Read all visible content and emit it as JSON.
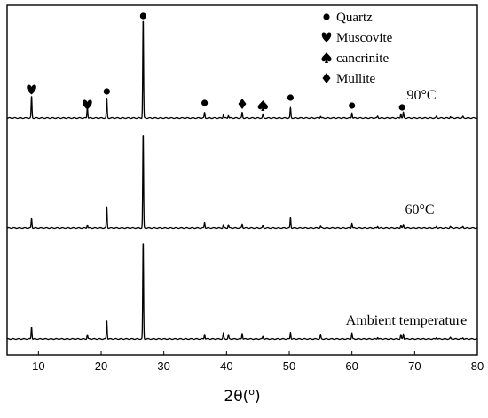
{
  "chart_data": {
    "type": "line",
    "title": "",
    "xlabel": "2θ(°)",
    "xlabel_parts": {
      "prefix": "2θ(",
      "sup": "o",
      "suffix": ")"
    },
    "ylabel": "",
    "xlim": [
      5,
      80
    ],
    "x_ticks": [
      10,
      20,
      30,
      40,
      50,
      60,
      70,
      80
    ],
    "y_ticks_shown": false,
    "grid": false,
    "peaks_2theta": [
      8.9,
      17.8,
      20.9,
      26.7,
      36.5,
      39.5,
      40.3,
      42.5,
      45.8,
      50.2,
      55.0,
      60.0,
      64.1,
      67.8,
      68.2,
      73.5,
      75.7,
      77.7
    ],
    "series": [
      {
        "name": "90°C",
        "baseline": 1.0,
        "peak_heights": [
          2.4,
          1.2,
          2.2,
          11.0,
          0.6,
          0.4,
          0.3,
          0.6,
          0.4,
          1.1,
          0.2,
          0.6,
          0.2,
          0.5,
          0.6,
          0.2,
          0.15,
          0.15
        ]
      },
      {
        "name": "60°C",
        "baseline": 1.0,
        "peak_heights": [
          1.1,
          0.4,
          2.5,
          11.0,
          0.7,
          0.4,
          0.4,
          0.5,
          0.3,
          1.2,
          0.2,
          0.6,
          0.2,
          0.3,
          0.4,
          0.2,
          0.15,
          0.15
        ]
      },
      {
        "name": "Ambient temperature",
        "baseline": 1.0,
        "peak_heights": [
          1.4,
          0.5,
          2.2,
          11.5,
          0.6,
          0.7,
          0.5,
          0.7,
          0.3,
          0.8,
          0.5,
          0.7,
          0.2,
          0.5,
          0.6,
          0.2,
          0.15,
          0.15
        ]
      }
    ],
    "legend": {
      "placement": "top-right",
      "entries": [
        {
          "symbol": "circle",
          "label": "Quartz"
        },
        {
          "symbol": "heart",
          "label": "Muscovite"
        },
        {
          "symbol": "spade",
          "label": "cancrinite"
        },
        {
          "symbol": "diamond",
          "label": "Mullite"
        }
      ]
    },
    "annotations": [
      {
        "symbol": "heart",
        "x": 8.9
      },
      {
        "symbol": "heart",
        "x": 17.8
      },
      {
        "symbol": "circle",
        "x": 20.9
      },
      {
        "symbol": "circle",
        "x": 26.7
      },
      {
        "symbol": "circle",
        "x": 36.5
      },
      {
        "symbol": "diamond",
        "x": 42.5
      },
      {
        "symbol": "spade",
        "x": 45.8
      },
      {
        "symbol": "circle",
        "x": 50.2
      },
      {
        "symbol": "circle",
        "x": 60.0
      },
      {
        "symbol": "circle",
        "x": 68.0
      }
    ]
  }
}
